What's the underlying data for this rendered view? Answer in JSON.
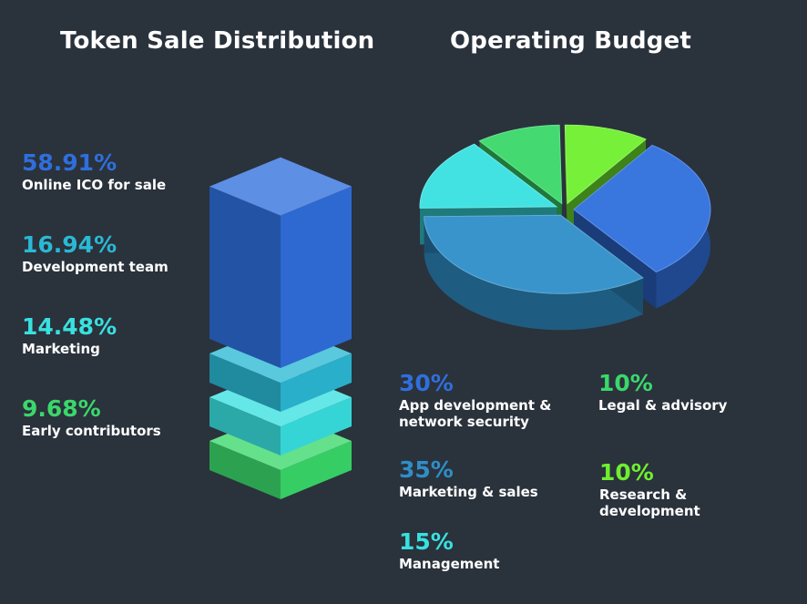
{
  "colors": {
    "background": "#2a323c",
    "blue": "#2f6fdc",
    "steel": "#2f8ec8",
    "teal": "#2bb8d4",
    "cyan": "#39e0e0",
    "green": "#3ad86a",
    "lime": "#6fef2f"
  },
  "chart_data": [
    {
      "type": "stacked-3d-bar",
      "title": "Token Sale Distribution",
      "series": [
        {
          "name": "Online ICO for sale",
          "value": 58.91,
          "label": "58.91%",
          "color": "#2f6fdc"
        },
        {
          "name": "Development team",
          "value": 16.94,
          "label": "16.94%",
          "color": "#2bb8d4"
        },
        {
          "name": "Marketing",
          "value": 14.48,
          "label": "14.48%",
          "color": "#39e0e0"
        },
        {
          "name": "Early contributors",
          "value": 9.68,
          "label": "9.68%",
          "color": "#3ad86a"
        }
      ]
    },
    {
      "type": "pie",
      "title": "Operating Budget",
      "slices": [
        {
          "name": "App development & network security",
          "value": 30,
          "label": "30%",
          "color": "#2f6fdc"
        },
        {
          "name": "Marketing & sales",
          "value": 35,
          "label": "35%",
          "color": "#2f8ec8"
        },
        {
          "name": "Management",
          "value": 15,
          "label": "15%",
          "color": "#39e0e0"
        },
        {
          "name": "Legal & advisory",
          "value": 10,
          "label": "10%",
          "color": "#3ad86a"
        },
        {
          "name": "Research & development",
          "value": 10,
          "label": "10%",
          "color": "#6fef2f"
        }
      ]
    }
  ],
  "left_legend": [
    {
      "pct": "58.91%",
      "label": "Online ICO for sale",
      "color": "#2f6fdc"
    },
    {
      "pct": "16.94%",
      "label": "Development team",
      "color": "#2bb8d4"
    },
    {
      "pct": "14.48%",
      "label": "Marketing",
      "color": "#39e0e0"
    },
    {
      "pct": "9.68%",
      "label": "Early contributors",
      "color": "#3ad86a"
    }
  ],
  "right_legend": [
    {
      "pct": "30%",
      "label": "App development &\nnetwork security",
      "color": "#2f6fdc"
    },
    {
      "pct": "35%",
      "label": "Marketing & sales",
      "color": "#2f8ec8"
    },
    {
      "pct": "15%",
      "label": "Management",
      "color": "#39e0e0"
    },
    {
      "pct": "10%",
      "label": "Legal & advisory",
      "color": "#3ad86a"
    },
    {
      "pct": "10%",
      "label": "Research &\ndevelopment",
      "color": "#6fef2f"
    }
  ]
}
